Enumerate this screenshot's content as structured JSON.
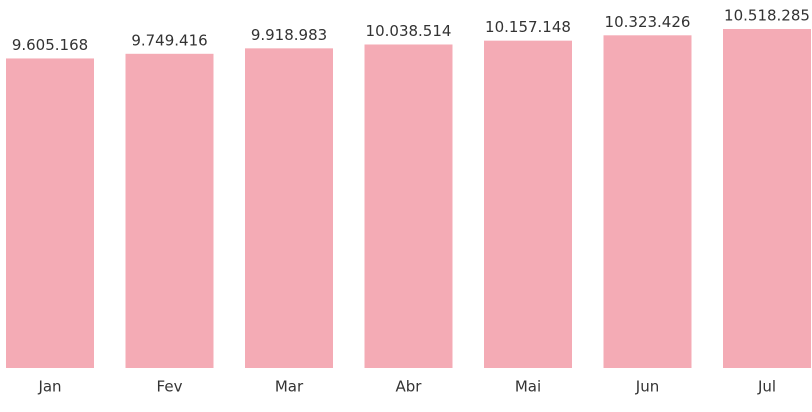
{
  "chart_data": {
    "type": "bar",
    "categories": [
      "Jan",
      "Fev",
      "Mar",
      "Abr",
      "Mai",
      "Jun",
      "Jul"
    ],
    "values": [
      9605168,
      9749416,
      9918983,
      10038514,
      10157148,
      10323426,
      10518285
    ],
    "value_labels": [
      "9.605.168",
      "9.749.416",
      "9.918.983",
      "10.038.514",
      "10.157.148",
      "10.323.426",
      "10.518.285"
    ],
    "color": "#f4abb5",
    "ylim": [
      0,
      11000000
    ]
  }
}
